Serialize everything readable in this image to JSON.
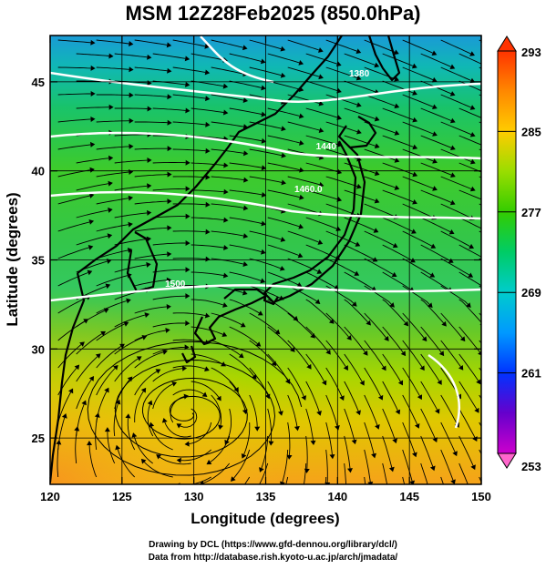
{
  "chart_data": {
    "type": "heatmap",
    "title": "MSM 12Z28Feb2025 (850.0hPa)",
    "xlabel": "Longitude (degrees)",
    "ylabel": "Latitude  (degrees)",
    "xlim": [
      120,
      150
    ],
    "ylim": [
      22.4,
      47.6
    ],
    "xticks": [
      "120",
      "125",
      "130",
      "135",
      "140",
      "145",
      "150"
    ],
    "yticks": [
      "25",
      "30",
      "35",
      "40",
      "45"
    ],
    "grid": true,
    "field": "temperature (K), shaded",
    "colorbar": {
      "range": [
        253,
        293
      ],
      "ticks": [
        "293",
        "285",
        "277",
        "269",
        "261",
        "253"
      ],
      "colors": [
        "#ff66cc",
        "#cc00cc",
        "#6600cc",
        "#0033ff",
        "#0099ff",
        "#00cccc",
        "#00cc66",
        "#33cc00",
        "#99dd00",
        "#ffcc00",
        "#ff8800",
        "#ff3300"
      ]
    },
    "contours": [
      {
        "label": "1380",
        "lon": 140.8,
        "lat": 45.3
      },
      {
        "label": "1440",
        "lon": 138.5,
        "lat": 41.2
      },
      {
        "label": "1460.0",
        "lon": 137.0,
        "lat": 38.8
      },
      {
        "label": "1500",
        "lon": 128.0,
        "lat": 33.5
      }
    ],
    "vortex_center": {
      "lon": 129.6,
      "lat": 26.4
    },
    "overlay": "streamlines"
  },
  "credits": {
    "line1": "Drawing by DCL (https://www.gfd-dennou.org/library/dcl/)",
    "line2": "Data from http://database.rish.kyoto-u.ac.jp/arch/jmadata/"
  }
}
